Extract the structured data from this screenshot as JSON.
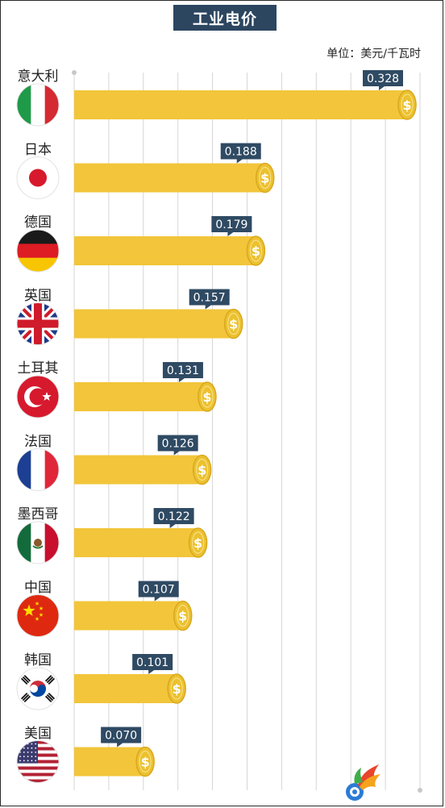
{
  "title": "工业电价",
  "unit_label": "单位：美元/千瓦时",
  "colors": {
    "bar": "#f2c53a",
    "coin": "#ecc12f",
    "coin_ring": "#d9a81f",
    "label_bg": "#2f4a63",
    "grid": "#d6d6d6",
    "title_bg": "#2c4660"
  },
  "chart_data": {
    "type": "bar",
    "orientation": "horizontal",
    "title": "工业电价",
    "ylabel": "",
    "xlabel": "",
    "unit": "美元/千瓦时",
    "xlim": [
      0,
      0.33
    ],
    "grid": true,
    "categories": [
      "意大利",
      "日本",
      "德国",
      "英国",
      "土耳其",
      "法国",
      "墨西哥",
      "中国",
      "韩国",
      "美国"
    ],
    "values": [
      0.328,
      0.188,
      0.179,
      0.157,
      0.131,
      0.126,
      0.122,
      0.107,
      0.101,
      0.07
    ],
    "value_labels": [
      "0.328",
      "0.188",
      "0.179",
      "0.157",
      "0.131",
      "0.126",
      "0.122",
      "0.107",
      "0.101",
      "0.070"
    ],
    "flag_icons": [
      "italy-flag-icon",
      "japan-flag-icon",
      "germany-flag-icon",
      "uk-flag-icon",
      "turkey-flag-icon",
      "france-flag-icon",
      "mexico-flag-icon",
      "china-flag-icon",
      "korea-flag-icon",
      "usa-flag-icon"
    ]
  }
}
